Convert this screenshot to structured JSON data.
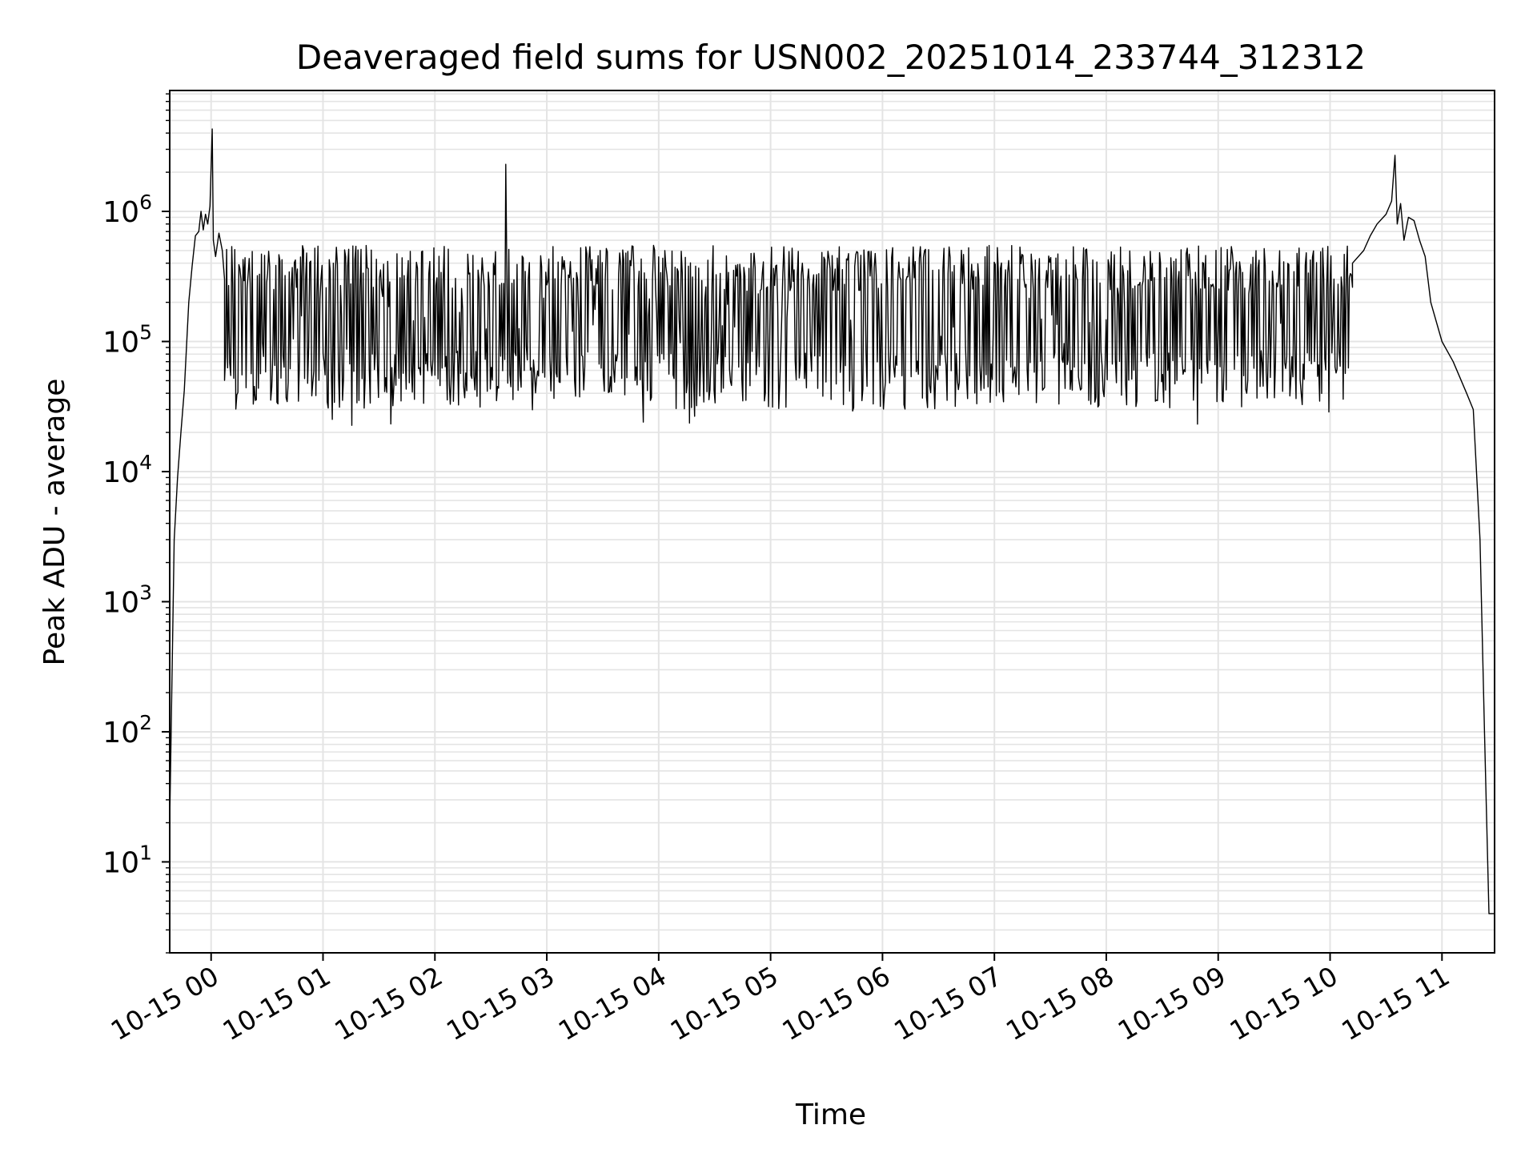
{
  "chart_data": {
    "type": "line",
    "title": "Deaveraged field sums for USN002_20251014_233744_312312",
    "xlabel": "Time",
    "ylabel": "Peak ADU - average",
    "yscale": "log",
    "ylim": [
      2,
      8500000
    ],
    "xlim_hours": [
      -0.37,
      11.47
    ],
    "grid": true,
    "x_ticks": [
      {
        "hour": 0,
        "label": "10-15 00"
      },
      {
        "hour": 1,
        "label": "10-15 01"
      },
      {
        "hour": 2,
        "label": "10-15 02"
      },
      {
        "hour": 3,
        "label": "10-15 03"
      },
      {
        "hour": 4,
        "label": "10-15 04"
      },
      {
        "hour": 5,
        "label": "10-15 05"
      },
      {
        "hour": 6,
        "label": "10-15 06"
      },
      {
        "hour": 7,
        "label": "10-15 07"
      },
      {
        "hour": 8,
        "label": "10-15 08"
      },
      {
        "hour": 9,
        "label": "10-15 09"
      },
      {
        "hour": 10,
        "label": "10-15 10"
      },
      {
        "hour": 11,
        "label": "10-15 11"
      }
    ],
    "y_ticks": [
      {
        "value": 10,
        "base": "10",
        "exp": "1"
      },
      {
        "value": 100,
        "base": "10",
        "exp": "2"
      },
      {
        "value": 1000,
        "base": "10",
        "exp": "3"
      },
      {
        "value": 10000,
        "base": "10",
        "exp": "4"
      },
      {
        "value": 100000,
        "base": "10",
        "exp": "5"
      },
      {
        "value": 1000000,
        "base": "10",
        "exp": "6"
      }
    ],
    "series": [
      {
        "name": "Peak ADU - average",
        "color": "#000000",
        "start_hour": -0.37,
        "end_hour": 11.47,
        "ramp_up": [
          [
            -0.37,
            20
          ],
          [
            -0.33,
            3000
          ],
          [
            -0.3,
            9000
          ],
          [
            -0.27,
            20000
          ],
          [
            -0.24,
            42000
          ],
          [
            -0.2,
            200000
          ],
          [
            -0.17,
            380000
          ],
          [
            -0.14,
            650000
          ],
          [
            -0.11,
            700000
          ],
          [
            -0.09,
            1000000
          ],
          [
            -0.07,
            720000
          ],
          [
            -0.05,
            950000
          ],
          [
            -0.03,
            800000
          ],
          [
            -0.01,
            1100000
          ],
          [
            0.01,
            4300000
          ],
          [
            0.02,
            600000
          ],
          [
            0.04,
            450000
          ],
          [
            0.07,
            680000
          ],
          [
            0.1,
            500000
          ],
          [
            0.12,
            300000
          ]
        ],
        "plateau": {
          "start_hour": 0.12,
          "end_hour": 10.2,
          "low": 30000,
          "high": 550000,
          "points": 1100,
          "min": 22000
        },
        "spikes": [
          [
            2.63,
            2300000
          ]
        ],
        "ramp_down": [
          [
            10.2,
            400000
          ],
          [
            10.3,
            500000
          ],
          [
            10.36,
            650000
          ],
          [
            10.42,
            800000
          ],
          [
            10.5,
            950000
          ],
          [
            10.55,
            1200000
          ],
          [
            10.58,
            2700000
          ],
          [
            10.6,
            800000
          ],
          [
            10.63,
            1150000
          ],
          [
            10.66,
            600000
          ],
          [
            10.7,
            900000
          ],
          [
            10.75,
            850000
          ],
          [
            10.8,
            600000
          ],
          [
            10.85,
            450000
          ],
          [
            10.9,
            200000
          ],
          [
            11.0,
            100000
          ],
          [
            11.1,
            70000
          ],
          [
            11.22,
            40000
          ],
          [
            11.28,
            30000
          ],
          [
            11.34,
            3000
          ],
          [
            11.38,
            100
          ],
          [
            11.42,
            4
          ],
          [
            11.47,
            4
          ]
        ]
      }
    ]
  }
}
